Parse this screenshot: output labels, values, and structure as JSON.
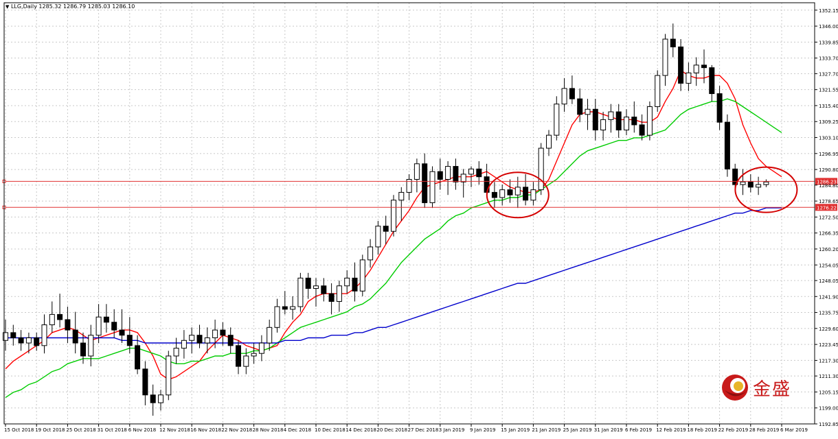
{
  "header": {
    "dropdown_icon": "triangle-down-icon",
    "symbol_label": "LLG,Daily",
    "ohlc_text": "1285.32 1286.79 1285.03 1286.10"
  },
  "logo": {
    "icon": "jinsheng-logo-icon",
    "text": "金盛",
    "color": "#c81a1a"
  },
  "chart_data": {
    "type": "candlestick",
    "symbol": "LLG",
    "timeframe": "Daily",
    "ylim": [
      1192.85,
      1355.0
    ],
    "y_ticks": [
      "1352.15",
      "1346.00",
      "1339.85",
      "1333.70",
      "1327.70",
      "1321.55",
      "1315.40",
      "1309.25",
      "1303.10",
      "1296.95",
      "1290.80",
      "1284.80",
      "1278.65",
      "1272.50",
      "1266.35",
      "1260.20",
      "1254.05",
      "1248.05",
      "1241.90",
      "1235.75",
      "1229.60",
      "1223.45",
      "1217.30",
      "1211.30",
      "1205.15",
      "1199.00",
      "1192.85"
    ],
    "x_ticks": [
      "15 Oct 2018",
      "19 Oct 2018",
      "25 Oct 2018",
      "31 Oct 2018",
      "6 Nov 2018",
      "12 Nov 2018",
      "16 Nov 2018",
      "22 Nov 2018",
      "28 Nov 2018",
      "4 Dec 2018",
      "10 Dec 2018",
      "14 Dec 2018",
      "20 Dec 2018",
      "27 Dec 2018",
      "3 Jan 2019",
      "9 Jan 2019",
      "15 Jan 2019",
      "21 Jan 2019",
      "25 Jan 2019",
      "31 Jan 2019",
      "6 Feb 2019",
      "12 Feb 2019",
      "18 Feb 2019",
      "22 Feb 2019",
      "28 Feb 2019",
      "6 Mar 2019"
    ],
    "x_tick_bar_index": [
      0,
      4,
      8,
      12,
      16,
      20,
      24,
      28,
      32,
      36,
      40,
      44,
      48,
      52,
      56,
      60,
      64,
      68,
      72,
      76,
      80,
      84,
      88,
      92,
      96,
      100
    ],
    "candles": [
      [
        1225,
        1233,
        1221,
        1228
      ],
      [
        1228,
        1231,
        1223,
        1226
      ],
      [
        1226,
        1229,
        1221,
        1224
      ],
      [
        1224,
        1228,
        1220,
        1226
      ],
      [
        1226,
        1228,
        1221,
        1223
      ],
      [
        1223,
        1235,
        1220,
        1231
      ],
      [
        1231,
        1240,
        1228,
        1235
      ],
      [
        1235,
        1243,
        1230,
        1233
      ],
      [
        1233,
        1238,
        1224,
        1229
      ],
      [
        1229,
        1236,
        1220,
        1224
      ],
      [
        1224,
        1228,
        1216,
        1219
      ],
      [
        1219,
        1231,
        1215,
        1227
      ],
      [
        1227,
        1239,
        1224,
        1234
      ],
      [
        1234,
        1239,
        1228,
        1232
      ],
      [
        1232,
        1237,
        1226,
        1229
      ],
      [
        1229,
        1237,
        1224,
        1227
      ],
      [
        1227,
        1234,
        1220,
        1223
      ],
      [
        1223,
        1227,
        1212,
        1214
      ],
      [
        1214,
        1217,
        1200,
        1204
      ],
      [
        1204,
        1208,
        1196,
        1201
      ],
      [
        1201,
        1206,
        1198,
        1204
      ],
      [
        1204,
        1221,
        1202,
        1219
      ],
      [
        1219,
        1226,
        1216,
        1222
      ],
      [
        1222,
        1229,
        1218,
        1225
      ],
      [
        1225,
        1230,
        1220,
        1227
      ],
      [
        1227,
        1231,
        1222,
        1224
      ],
      [
        1224,
        1230,
        1220,
        1226
      ],
      [
        1226,
        1233,
        1222,
        1229
      ],
      [
        1229,
        1232,
        1223,
        1227
      ],
      [
        1227,
        1230,
        1220,
        1223
      ],
      [
        1223,
        1225,
        1212,
        1215
      ],
      [
        1215,
        1222,
        1212,
        1219
      ],
      [
        1219,
        1224,
        1216,
        1220
      ],
      [
        1220,
        1227,
        1217,
        1224
      ],
      [
        1224,
        1233,
        1221,
        1230
      ],
      [
        1230,
        1241,
        1228,
        1238
      ],
      [
        1238,
        1244,
        1235,
        1237
      ],
      [
        1237,
        1242,
        1233,
        1238
      ],
      [
        1238,
        1251,
        1236,
        1249
      ],
      [
        1249,
        1251,
        1241,
        1245
      ],
      [
        1245,
        1249,
        1238,
        1246
      ],
      [
        1246,
        1249,
        1240,
        1243
      ],
      [
        1243,
        1247,
        1235,
        1240
      ],
      [
        1240,
        1248,
        1236,
        1246
      ],
      [
        1246,
        1252,
        1243,
        1249
      ],
      [
        1249,
        1255,
        1240,
        1244
      ],
      [
        1244,
        1258,
        1242,
        1256
      ],
      [
        1256,
        1264,
        1253,
        1261
      ],
      [
        1261,
        1271,
        1258,
        1269
      ],
      [
        1269,
        1273,
        1262,
        1267
      ],
      [
        1267,
        1281,
        1265,
        1279
      ],
      [
        1279,
        1284,
        1271,
        1282
      ],
      [
        1282,
        1289,
        1279,
        1287
      ],
      [
        1287,
        1295,
        1282,
        1293
      ],
      [
        1293,
        1297,
        1276,
        1278
      ],
      [
        1278,
        1292,
        1276,
        1290
      ],
      [
        1290,
        1295,
        1283,
        1287
      ],
      [
        1287,
        1294,
        1281,
        1292
      ],
      [
        1292,
        1295,
        1283,
        1286
      ],
      [
        1286,
        1291,
        1280,
        1289
      ],
      [
        1289,
        1292,
        1284,
        1291
      ],
      [
        1291,
        1294,
        1285,
        1288
      ],
      [
        1288,
        1293,
        1281,
        1282
      ],
      [
        1282,
        1286,
        1276,
        1280
      ],
      [
        1280,
        1285,
        1277,
        1283
      ],
      [
        1283,
        1287,
        1278,
        1281
      ],
      [
        1281,
        1288,
        1276,
        1284
      ],
      [
        1284,
        1289,
        1277,
        1279
      ],
      [
        1279,
        1286,
        1277,
        1283
      ],
      [
        1283,
        1301,
        1281,
        1299
      ],
      [
        1299,
        1306,
        1296,
        1304
      ],
      [
        1304,
        1319,
        1302,
        1316
      ],
      [
        1316,
        1326,
        1313,
        1322
      ],
      [
        1322,
        1327,
        1316,
        1318
      ],
      [
        1318,
        1322,
        1309,
        1312
      ],
      [
        1312,
        1318,
        1306,
        1314
      ],
      [
        1314,
        1318,
        1302,
        1306
      ],
      [
        1306,
        1313,
        1302,
        1310
      ],
      [
        1310,
        1316,
        1305,
        1313
      ],
      [
        1313,
        1316,
        1303,
        1306
      ],
      [
        1306,
        1314,
        1304,
        1311
      ],
      [
        1311,
        1317,
        1305,
        1308
      ],
      [
        1308,
        1312,
        1302,
        1304
      ],
      [
        1304,
        1317,
        1302,
        1315
      ],
      [
        1315,
        1329,
        1313,
        1327
      ],
      [
        1327,
        1343,
        1323,
        1341
      ],
      [
        1341,
        1347,
        1334,
        1338
      ],
      [
        1338,
        1341,
        1321,
        1324
      ],
      [
        1324,
        1332,
        1321,
        1328
      ],
      [
        1328,
        1334,
        1323,
        1331
      ],
      [
        1331,
        1337,
        1324,
        1330
      ],
      [
        1330,
        1331,
        1317,
        1320
      ],
      [
        1320,
        1323,
        1306,
        1309
      ],
      [
        1309,
        1312,
        1288,
        1291
      ],
      [
        1291,
        1293,
        1283,
        1285
      ],
      [
        1285,
        1291,
        1281,
        1286
      ],
      [
        1286,
        1289,
        1282,
        1284
      ],
      [
        1284,
        1288,
        1281,
        1285
      ],
      [
        1285,
        1287,
        1284,
        1286
      ]
    ],
    "series": [
      {
        "name": "",
        "color": "#ff0000",
        "kind": "ma",
        "values": [
          1214,
          1217,
          1219,
          1221,
          1223,
          1225,
          1228,
          1229,
          1230,
          1229,
          1227,
          1225,
          1226,
          1227,
          1228,
          1229,
          1229,
          1228,
          1224,
          1219,
          1212,
          1210,
          1211,
          1213,
          1215,
          1217,
          1221,
          1224,
          1227,
          1226,
          1225,
          1223,
          1222,
          1221,
          1222,
          1223,
          1228,
          1232,
          1235,
          1240,
          1242,
          1243,
          1243,
          1243,
          1243,
          1245,
          1248,
          1252,
          1257,
          1262,
          1267,
          1271,
          1275,
          1280,
          1284,
          1285,
          1286,
          1287,
          1288,
          1288,
          1288,
          1289,
          1290,
          1288,
          1286,
          1284,
          1283,
          1282,
          1282,
          1283,
          1287,
          1294,
          1301,
          1308,
          1312,
          1313,
          1313,
          1312,
          1311,
          1310,
          1310,
          1310,
          1309,
          1309,
          1311,
          1317,
          1322,
          1329,
          1327,
          1326,
          1326,
          1327,
          1327,
          1324,
          1318,
          1308,
          1301,
          1295,
          1292,
          1290,
          1288
        ]
      },
      {
        "name": "",
        "color": "#00cc00",
        "kind": "ma",
        "values": [
          1203,
          1205,
          1206,
          1208,
          1209,
          1211,
          1213,
          1214,
          1216,
          1217,
          1218,
          1218,
          1218,
          1219,
          1220,
          1221,
          1222,
          1222,
          1221,
          1220,
          1219,
          1217,
          1216,
          1216,
          1217,
          1217,
          1218,
          1219,
          1219,
          1220,
          1220,
          1220,
          1221,
          1221,
          1222,
          1224,
          1226,
          1228,
          1230,
          1231,
          1232,
          1233,
          1234,
          1235,
          1236,
          1238,
          1239,
          1241,
          1244,
          1247,
          1251,
          1255,
          1258,
          1261,
          1264,
          1266,
          1268,
          1271,
          1273,
          1274,
          1276,
          1277,
          1278,
          1279,
          1279,
          1280,
          1280,
          1281,
          1281,
          1283,
          1285,
          1287,
          1290,
          1293,
          1296,
          1298,
          1299,
          1300,
          1301,
          1302,
          1302,
          1303,
          1303,
          1304,
          1305,
          1306,
          1309,
          1312,
          1314,
          1315,
          1316,
          1317,
          1317,
          1318,
          1317,
          1315,
          1313,
          1311,
          1309,
          1307,
          1305
        ]
      },
      {
        "name": "",
        "color": "#0000cc",
        "kind": "ma",
        "values": [
          1226,
          1226,
          1226,
          1226,
          1226,
          1226,
          1226,
          1226,
          1226,
          1226,
          1226,
          1226,
          1226,
          1226,
          1226,
          1225,
          1225,
          1225,
          1224,
          1224,
          1224,
          1224,
          1224,
          1224,
          1224,
          1224,
          1224,
          1224,
          1224,
          1224,
          1224,
          1224,
          1224,
          1224,
          1224,
          1224,
          1225,
          1225,
          1225,
          1226,
          1226,
          1226,
          1227,
          1227,
          1227,
          1228,
          1228,
          1229,
          1230,
          1230,
          1231,
          1232,
          1233,
          1234,
          1235,
          1236,
          1237,
          1238,
          1239,
          1240,
          1241,
          1242,
          1243,
          1244,
          1245,
          1246,
          1247,
          1247,
          1248,
          1249,
          1250,
          1251,
          1252,
          1253,
          1254,
          1255,
          1256,
          1257,
          1258,
          1259,
          1260,
          1261,
          1262,
          1263,
          1264,
          1265,
          1266,
          1267,
          1268,
          1269,
          1270,
          1271,
          1272,
          1273,
          1274,
          1274,
          1275,
          1275,
          1276,
          1276,
          1276
        ]
      }
    ],
    "price_lines": [
      {
        "value": 1286.23,
        "label": "1286.23",
        "color": "#e03030"
      },
      {
        "value": 1276.22,
        "label": "1276.22",
        "color": "#e03030"
      }
    ],
    "annotations": [
      {
        "shape": "ellipse",
        "color": "#d40000",
        "center_bar": 66,
        "center_value": 1281
      },
      {
        "shape": "ellipse",
        "color": "#d40000",
        "center_bar": 98,
        "center_value": 1283
      }
    ],
    "grid": true,
    "grid_style": "dotted"
  }
}
